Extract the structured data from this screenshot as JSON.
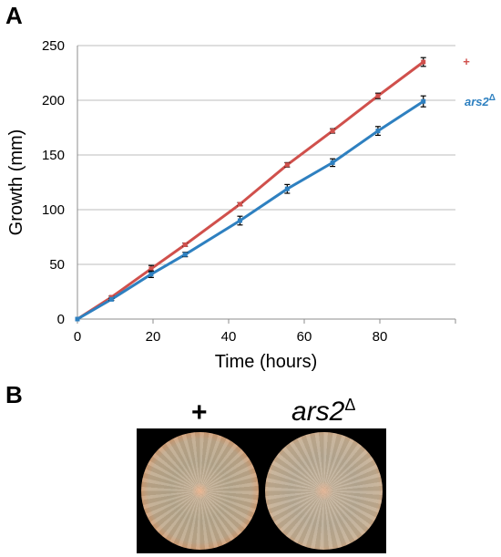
{
  "panel_a_label": "A",
  "panel_b_label": "B",
  "chart_data": {
    "type": "line",
    "title": "",
    "xlabel": "Time (hours)",
    "ylabel": "Growth (mm)",
    "xlim": [
      0,
      100
    ],
    "ylim": [
      0,
      250
    ],
    "xticks": [
      0,
      20,
      40,
      60,
      80
    ],
    "yticks": [
      0,
      50,
      100,
      150,
      200,
      250
    ],
    "grid": "horizontal",
    "legend_placement": "right, at line ends",
    "series": [
      {
        "name": "+",
        "color": "#d0504c",
        "x": [
          0,
          9,
          19.5,
          28.5,
          43,
          55.5,
          67.5,
          79.5,
          91.5
        ],
        "y": [
          0,
          20,
          46,
          68,
          105,
          141,
          172,
          204,
          235
        ],
        "err": [
          0,
          1,
          3,
          1.5,
          1.5,
          2,
          2,
          2.5,
          4
        ]
      },
      {
        "name": "ars2",
        "name_sup": "Δ",
        "color": "#2e80c0",
        "x": [
          0,
          9,
          19.5,
          28.5,
          43,
          55.5,
          67.5,
          79.5,
          91.5
        ],
        "y": [
          0,
          18,
          41,
          59,
          90,
          119,
          143,
          172,
          199
        ],
        "err": [
          0,
          1,
          3,
          2,
          4,
          4,
          3.5,
          4,
          5
        ]
      }
    ]
  },
  "panel_b": {
    "left_label": "+",
    "right_label_base": "ars2",
    "right_label_sup": "Δ"
  }
}
